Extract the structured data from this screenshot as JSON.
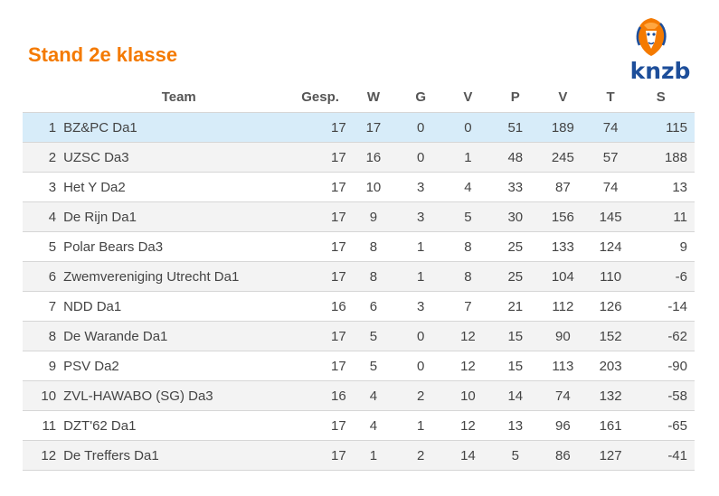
{
  "title": "Stand 2e klasse",
  "logo": {
    "text": "knzb",
    "icon": "lion-icon",
    "colors": {
      "orange": "#f47a00",
      "blue": "#1d4e9a"
    }
  },
  "accent_color": "#f47a00",
  "highlight_color": "#d7ecf9",
  "columns": [
    "",
    "Team",
    "Gesp.",
    "W",
    "G",
    "V",
    "P",
    "V",
    "T",
    "S"
  ],
  "rows": [
    {
      "pos": "1",
      "team": "BZ&PC Da1",
      "gesp": "17",
      "w": "17",
      "g": "0",
      "v": "0",
      "p": "51",
      "vf": "189",
      "t": "74",
      "s": "115"
    },
    {
      "pos": "2",
      "team": "UZSC Da3",
      "gesp": "17",
      "w": "16",
      "g": "0",
      "v": "1",
      "p": "48",
      "vf": "245",
      "t": "57",
      "s": "188"
    },
    {
      "pos": "3",
      "team": "Het Y Da2",
      "gesp": "17",
      "w": "10",
      "g": "3",
      "v": "4",
      "p": "33",
      "vf": "87",
      "t": "74",
      "s": "13"
    },
    {
      "pos": "4",
      "team": "De Rijn Da1",
      "gesp": "17",
      "w": "9",
      "g": "3",
      "v": "5",
      "p": "30",
      "vf": "156",
      "t": "145",
      "s": "11"
    },
    {
      "pos": "5",
      "team": "Polar Bears Da3",
      "gesp": "17",
      "w": "8",
      "g": "1",
      "v": "8",
      "p": "25",
      "vf": "133",
      "t": "124",
      "s": "9"
    },
    {
      "pos": "6",
      "team": "Zwemvereniging Utrecht Da1",
      "gesp": "17",
      "w": "8",
      "g": "1",
      "v": "8",
      "p": "25",
      "vf": "104",
      "t": "110",
      "s": "-6"
    },
    {
      "pos": "7",
      "team": "NDD Da1",
      "gesp": "16",
      "w": "6",
      "g": "3",
      "v": "7",
      "p": "21",
      "vf": "112",
      "t": "126",
      "s": "-14"
    },
    {
      "pos": "8",
      "team": "De Warande Da1",
      "gesp": "17",
      "w": "5",
      "g": "0",
      "v": "12",
      "p": "15",
      "vf": "90",
      "t": "152",
      "s": "-62"
    },
    {
      "pos": "9",
      "team": "PSV Da2",
      "gesp": "17",
      "w": "5",
      "g": "0",
      "v": "12",
      "p": "15",
      "vf": "113",
      "t": "203",
      "s": "-90"
    },
    {
      "pos": "10",
      "team": "ZVL-HAWABO (SG) Da3",
      "gesp": "16",
      "w": "4",
      "g": "2",
      "v": "10",
      "p": "14",
      "vf": "74",
      "t": "132",
      "s": "-58"
    },
    {
      "pos": "11",
      "team": "DZT'62 Da1",
      "gesp": "17",
      "w": "4",
      "g": "1",
      "v": "12",
      "p": "13",
      "vf": "96",
      "t": "161",
      "s": "-65"
    },
    {
      "pos": "12",
      "team": "De Treffers Da1",
      "gesp": "17",
      "w": "1",
      "g": "2",
      "v": "14",
      "p": "5",
      "vf": "86",
      "t": "127",
      "s": "-41"
    }
  ]
}
